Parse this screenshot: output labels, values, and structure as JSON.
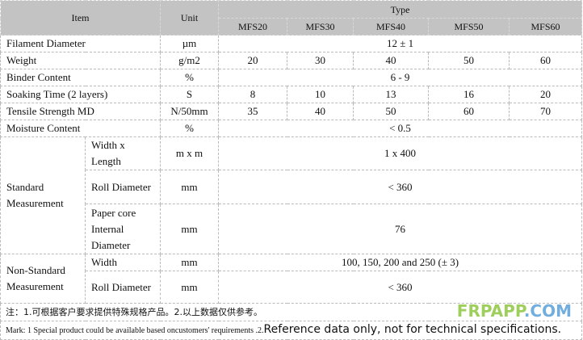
{
  "header": {
    "item": "Item",
    "unit": "Unit",
    "type": "Type",
    "models": [
      "MFS20",
      "MFS30",
      "MFS40",
      "MFS50",
      "MFS60"
    ]
  },
  "rows": {
    "filament": {
      "label": "Filament Diameter",
      "unit": "µm",
      "value": "12 ± 1"
    },
    "weight": {
      "label": "Weight",
      "unit": "g/m2",
      "values": [
        "20",
        "30",
        "40",
        "50",
        "60"
      ]
    },
    "binder": {
      "label": "Binder Content",
      "unit": "%",
      "value": "6 - 9"
    },
    "soaking": {
      "label": "Soaking Time (2 layers)",
      "unit": "S",
      "values": [
        "8",
        "10",
        "13",
        "16",
        "20"
      ]
    },
    "tensile": {
      "label": "Tensile Strength MD",
      "unit": "N/50mm",
      "values": [
        "35",
        "40",
        "50",
        "60",
        "70"
      ]
    },
    "moisture": {
      "label": "Moisture Content",
      "unit": "%",
      "value": "< 0.5"
    }
  },
  "standard": {
    "label": "Standard Measurement",
    "items": [
      {
        "label": "Width x Length",
        "unit": "m x m",
        "value": "1 x 400"
      },
      {
        "label": "Roll Diameter",
        "unit": "mm",
        "value": "< 360"
      },
      {
        "label": "Paper core Internal Diameter",
        "unit": "mm",
        "value": "76"
      }
    ]
  },
  "nonstandard": {
    "label": "Non-Standard Measurement",
    "items": [
      {
        "label": "Width",
        "unit": "mm",
        "value": "100, 150, 200 and 250 (± 3)"
      },
      {
        "label": "Roll Diameter",
        "unit": "mm",
        "value": "< 360"
      }
    ]
  },
  "notes": {
    "cn": "注：1.可根据客户要求提供特殊规格产品。2.以上数据仅供参考。",
    "en_a": "Mark: 1 Special product could be available based oncustomers' requirements .2.",
    "en_b": "Reference data only, not for technical specifications."
  },
  "watermark": {
    "a": "FRPAPP",
    "b": ".COM"
  }
}
